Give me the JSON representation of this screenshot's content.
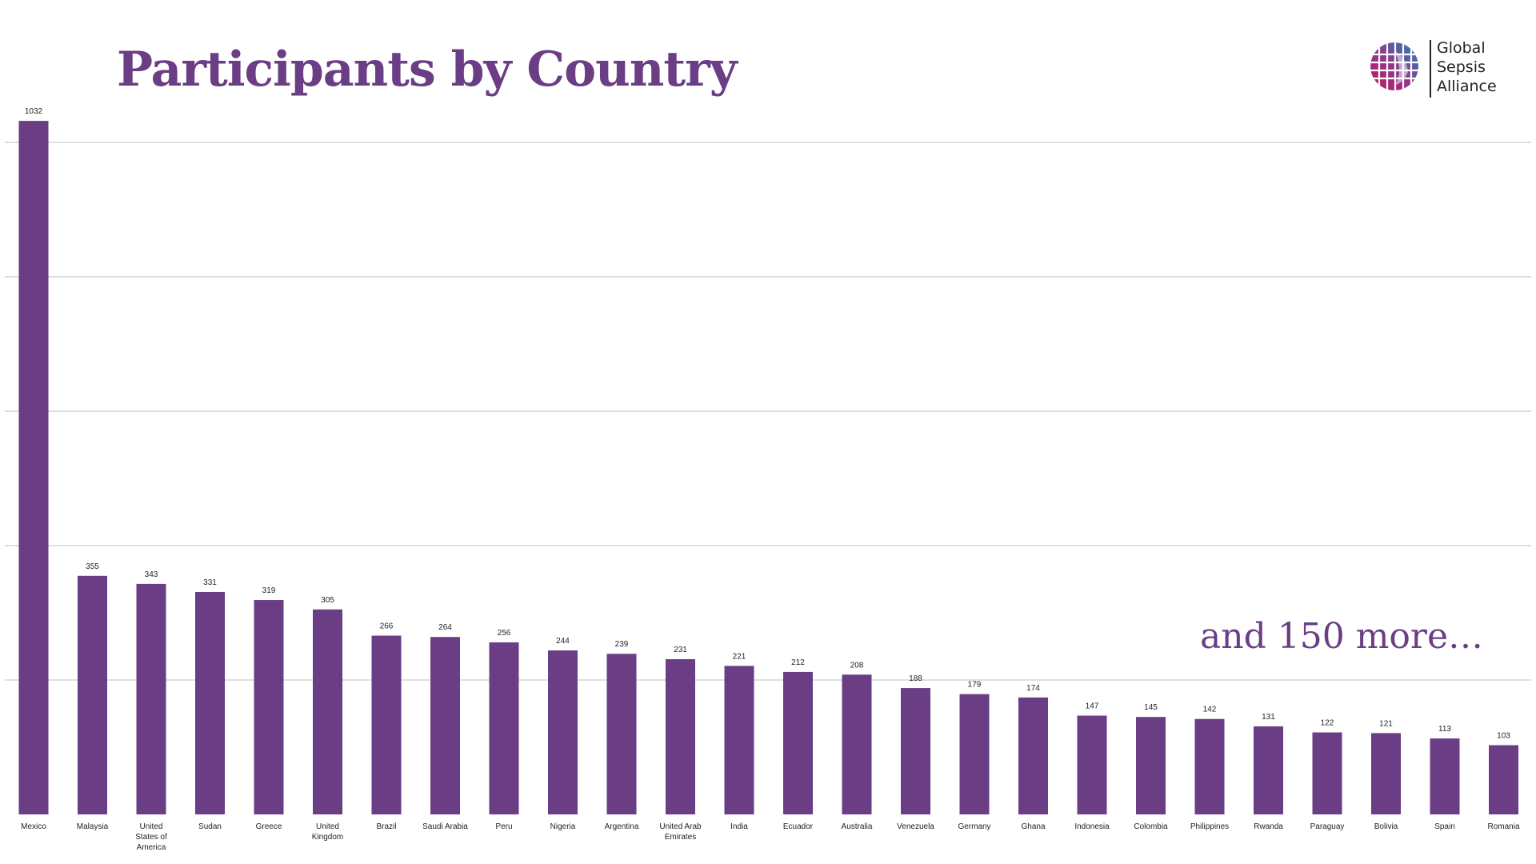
{
  "page": {
    "title": "Participants by Country",
    "note": "and 150 more…"
  },
  "logo": {
    "line1": "Global",
    "line2": "Sepsis",
    "line3": "Alliance"
  },
  "colors": {
    "bar": "#6a3d85",
    "title": "#6a3d85",
    "grid": "#bfbfbf",
    "text": "#222222"
  },
  "chart_data": {
    "type": "bar",
    "title": "Participants by Country",
    "xlabel": "",
    "ylabel": "",
    "ylim": [
      0,
      1000
    ],
    "grid": true,
    "categories": [
      "Mexico",
      "Malaysia",
      "United States of America",
      "Sudan",
      "Greece",
      "United Kingdom",
      "Brazil",
      "Saudi Arabia",
      "Peru",
      "Nigeria",
      "Argentina",
      "United Arab Emirates",
      "India",
      "Ecuador",
      "Australia",
      "Venezuela",
      "Germany",
      "Ghana",
      "Indonesia",
      "Colombia",
      "Philippines",
      "Rwanda",
      "Paraguay",
      "Bolivia",
      "Spain",
      "Romania"
    ],
    "values": [
      1032,
      355,
      343,
      331,
      319,
      305,
      266,
      264,
      256,
      244,
      239,
      231,
      221,
      212,
      208,
      188,
      179,
      174,
      147,
      145,
      142,
      131,
      122,
      121,
      113,
      103
    ]
  }
}
